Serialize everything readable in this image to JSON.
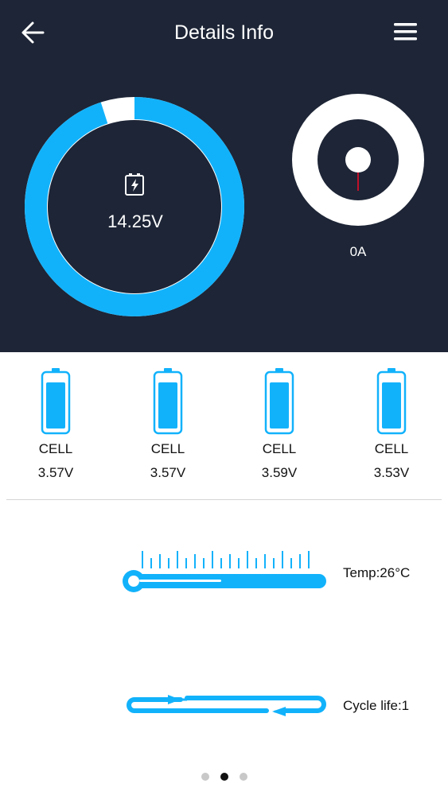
{
  "header": {
    "title": "Details Info",
    "back_icon": "arrow-left-icon",
    "menu_icon": "hamburger-menu-icon"
  },
  "summary": {
    "total_voltage": "14.25V",
    "battery_icon": "battery-charging-icon",
    "current": "0A",
    "soc_percent": 95
  },
  "cells": [
    {
      "label": "CELL",
      "voltage": "3.57V",
      "fill_percent": 82
    },
    {
      "label": "CELL",
      "voltage": "3.57V",
      "fill_percent": 82
    },
    {
      "label": "CELL",
      "voltage": "3.59V",
      "fill_percent": 82
    },
    {
      "label": "CELL",
      "voltage": "3.53V",
      "fill_percent": 82
    }
  ],
  "temperature": {
    "label": "Temp:26°C",
    "icon": "thermometer-icon"
  },
  "cycle": {
    "label": "Cycle life:1",
    "icon": "cycle-arrows-icon"
  },
  "pagination": {
    "pages": 3,
    "active": 1
  },
  "colors": {
    "panel_bg": "#1d2536",
    "accent": "#12b2fb",
    "needle": "#c0102a",
    "text_light": "#ffffff",
    "text_dark": "#111111"
  }
}
